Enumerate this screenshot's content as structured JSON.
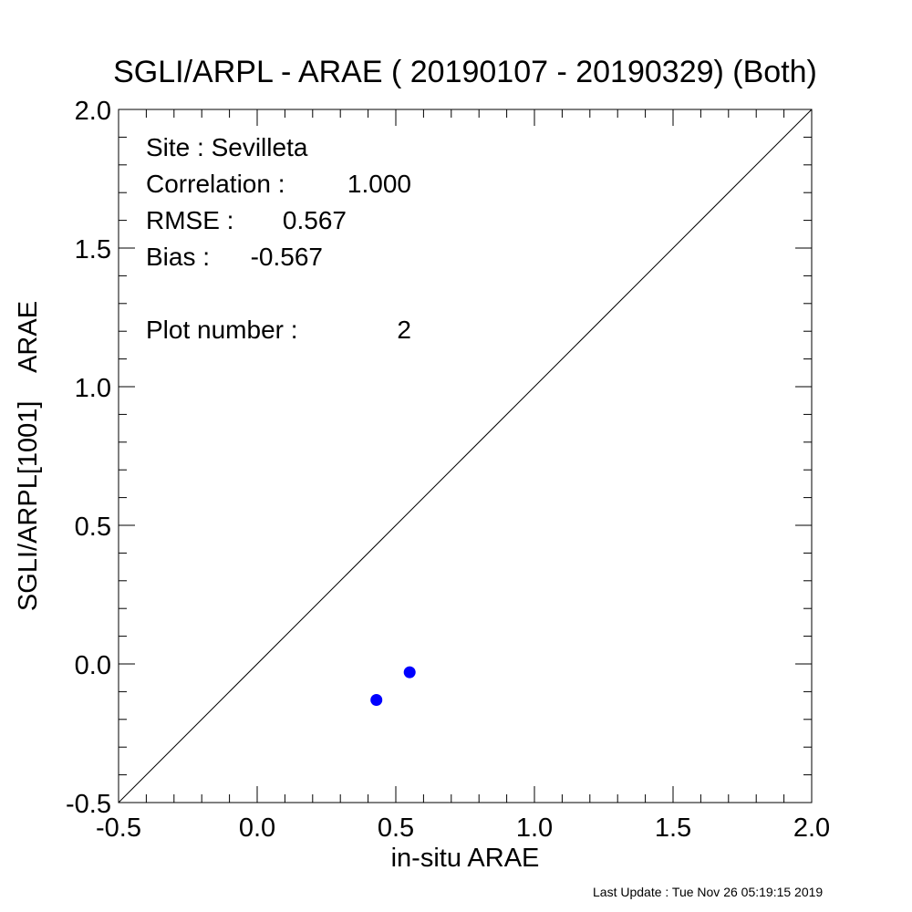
{
  "chart_data": {
    "type": "scatter",
    "title": "SGLI/ARPL - ARAE ( 20190107 - 20190329) (Both)",
    "xlabel": "in-situ ARAE",
    "ylabel": "SGLI/ARPL[1001]    ARAE",
    "xlim": [
      -0.5,
      2.0
    ],
    "ylim": [
      -0.5,
      2.0
    ],
    "x_ticks": [
      "-0.5",
      "0.0",
      "0.5",
      "1.0",
      "1.5",
      "2.0"
    ],
    "y_ticks": [
      "-0.5",
      "0.0",
      "0.5",
      "1.0",
      "1.5",
      "2.0"
    ],
    "grid": false,
    "reference_line": "1:1",
    "point_color": "#0000ff",
    "points": [
      {
        "x": 0.43,
        "y": -0.13
      },
      {
        "x": 0.55,
        "y": -0.03
      }
    ],
    "stats": [
      {
        "label": "Site : Sevilleta",
        "value": ""
      },
      {
        "label": "Correlation :",
        "value": "1.000"
      },
      {
        "label": "RMSE :",
        "value": "0.567"
      },
      {
        "label": "Bias :",
        "value": "-0.567"
      },
      {
        "label": "Plot number :",
        "value": "2"
      }
    ]
  },
  "footer": "Last Update : Tue Nov 26 05:19:15 2019"
}
